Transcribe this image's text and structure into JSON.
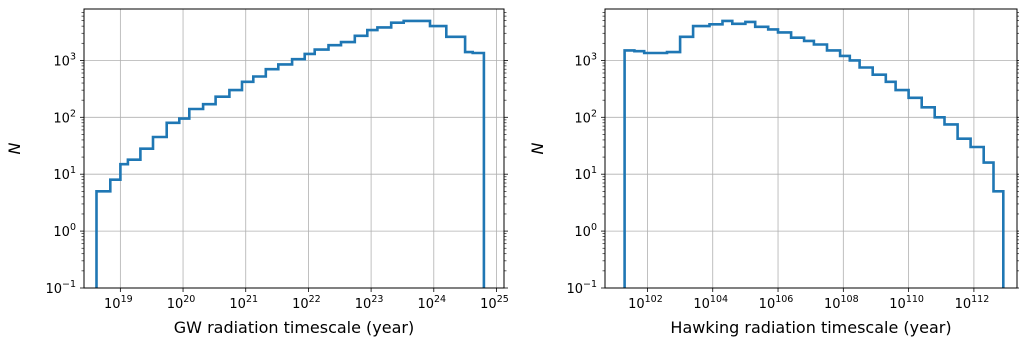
{
  "chart_data": [
    {
      "type": "histogram",
      "xlabel": "GW radiation timescale (year)",
      "ylabel": "N",
      "xscale": "log",
      "yscale": "log",
      "xlim_exponent": [
        18.42,
        25.12
      ],
      "ylim": [
        0.1,
        8000
      ],
      "grid": true,
      "series_color": "#1f77b4",
      "x_ticks": [
        {
          "base": "10",
          "exp": "19"
        },
        {
          "base": "10",
          "exp": "20"
        },
        {
          "base": "10",
          "exp": "21"
        },
        {
          "base": "10",
          "exp": "22"
        },
        {
          "base": "10",
          "exp": "23"
        },
        {
          "base": "10",
          "exp": "24"
        },
        {
          "base": "10",
          "exp": "25"
        }
      ],
      "y_ticks": [
        {
          "base": "10",
          "exp": "−1"
        },
        {
          "base": "10",
          "exp": "0"
        },
        {
          "base": "10",
          "exp": "1"
        },
        {
          "base": "10",
          "exp": "2"
        },
        {
          "base": "10",
          "exp": "3"
        }
      ],
      "bin_edges_exponent": [
        18.62,
        18.84,
        19.0,
        19.12,
        19.32,
        19.52,
        19.74,
        19.94,
        20.1,
        20.32,
        20.52,
        20.74,
        20.94,
        21.12,
        21.32,
        21.52,
        21.74,
        21.94,
        22.1,
        22.32,
        22.52,
        22.74,
        22.94,
        23.1,
        23.32,
        23.52,
        23.94,
        24.2,
        24.5,
        24.62,
        24.8
      ],
      "counts": [
        5,
        8,
        15,
        18,
        28,
        45,
        80,
        95,
        140,
        170,
        230,
        300,
        420,
        520,
        700,
        850,
        1050,
        1300,
        1550,
        1850,
        2100,
        2700,
        3400,
        3800,
        4600,
        4950,
        4000,
        2600,
        1400,
        1350
      ]
    },
    {
      "type": "histogram",
      "xlabel": "Hawking radiation timescale (year)",
      "ylabel": "N",
      "xscale": "log",
      "yscale": "log",
      "xlim_exponent": [
        100.7,
        113.32
      ],
      "ylim": [
        0.1,
        8000
      ],
      "grid": true,
      "series_color": "#1f77b4",
      "x_ticks": [
        {
          "base": "10",
          "exp": "102"
        },
        {
          "base": "10",
          "exp": "104"
        },
        {
          "base": "10",
          "exp": "106"
        },
        {
          "base": "10",
          "exp": "108"
        },
        {
          "base": "10",
          "exp": "110"
        },
        {
          "base": "10",
          "exp": "112"
        }
      ],
      "y_ticks": [
        {
          "base": "10",
          "exp": "−1"
        },
        {
          "base": "10",
          "exp": "0"
        },
        {
          "base": "10",
          "exp": "1"
        },
        {
          "base": "10",
          "exp": "2"
        },
        {
          "base": "10",
          "exp": "3"
        }
      ],
      "bin_edges_exponent": [
        101.3,
        101.6,
        101.9,
        102.6,
        103.0,
        103.4,
        103.9,
        104.3,
        104.6,
        105.0,
        105.3,
        105.7,
        106.0,
        106.4,
        106.8,
        107.1,
        107.5,
        107.9,
        108.2,
        108.5,
        108.9,
        109.3,
        109.6,
        110.0,
        110.4,
        110.8,
        111.1,
        111.5,
        111.9,
        112.3,
        112.6,
        112.9
      ],
      "counts": [
        1500,
        1450,
        1350,
        1400,
        2600,
        4000,
        4300,
        4950,
        4400,
        4750,
        3900,
        3500,
        3100,
        2500,
        2200,
        1900,
        1500,
        1200,
        1000,
        750,
        560,
        420,
        300,
        220,
        150,
        100,
        75,
        42,
        30,
        16,
        5
      ]
    }
  ]
}
